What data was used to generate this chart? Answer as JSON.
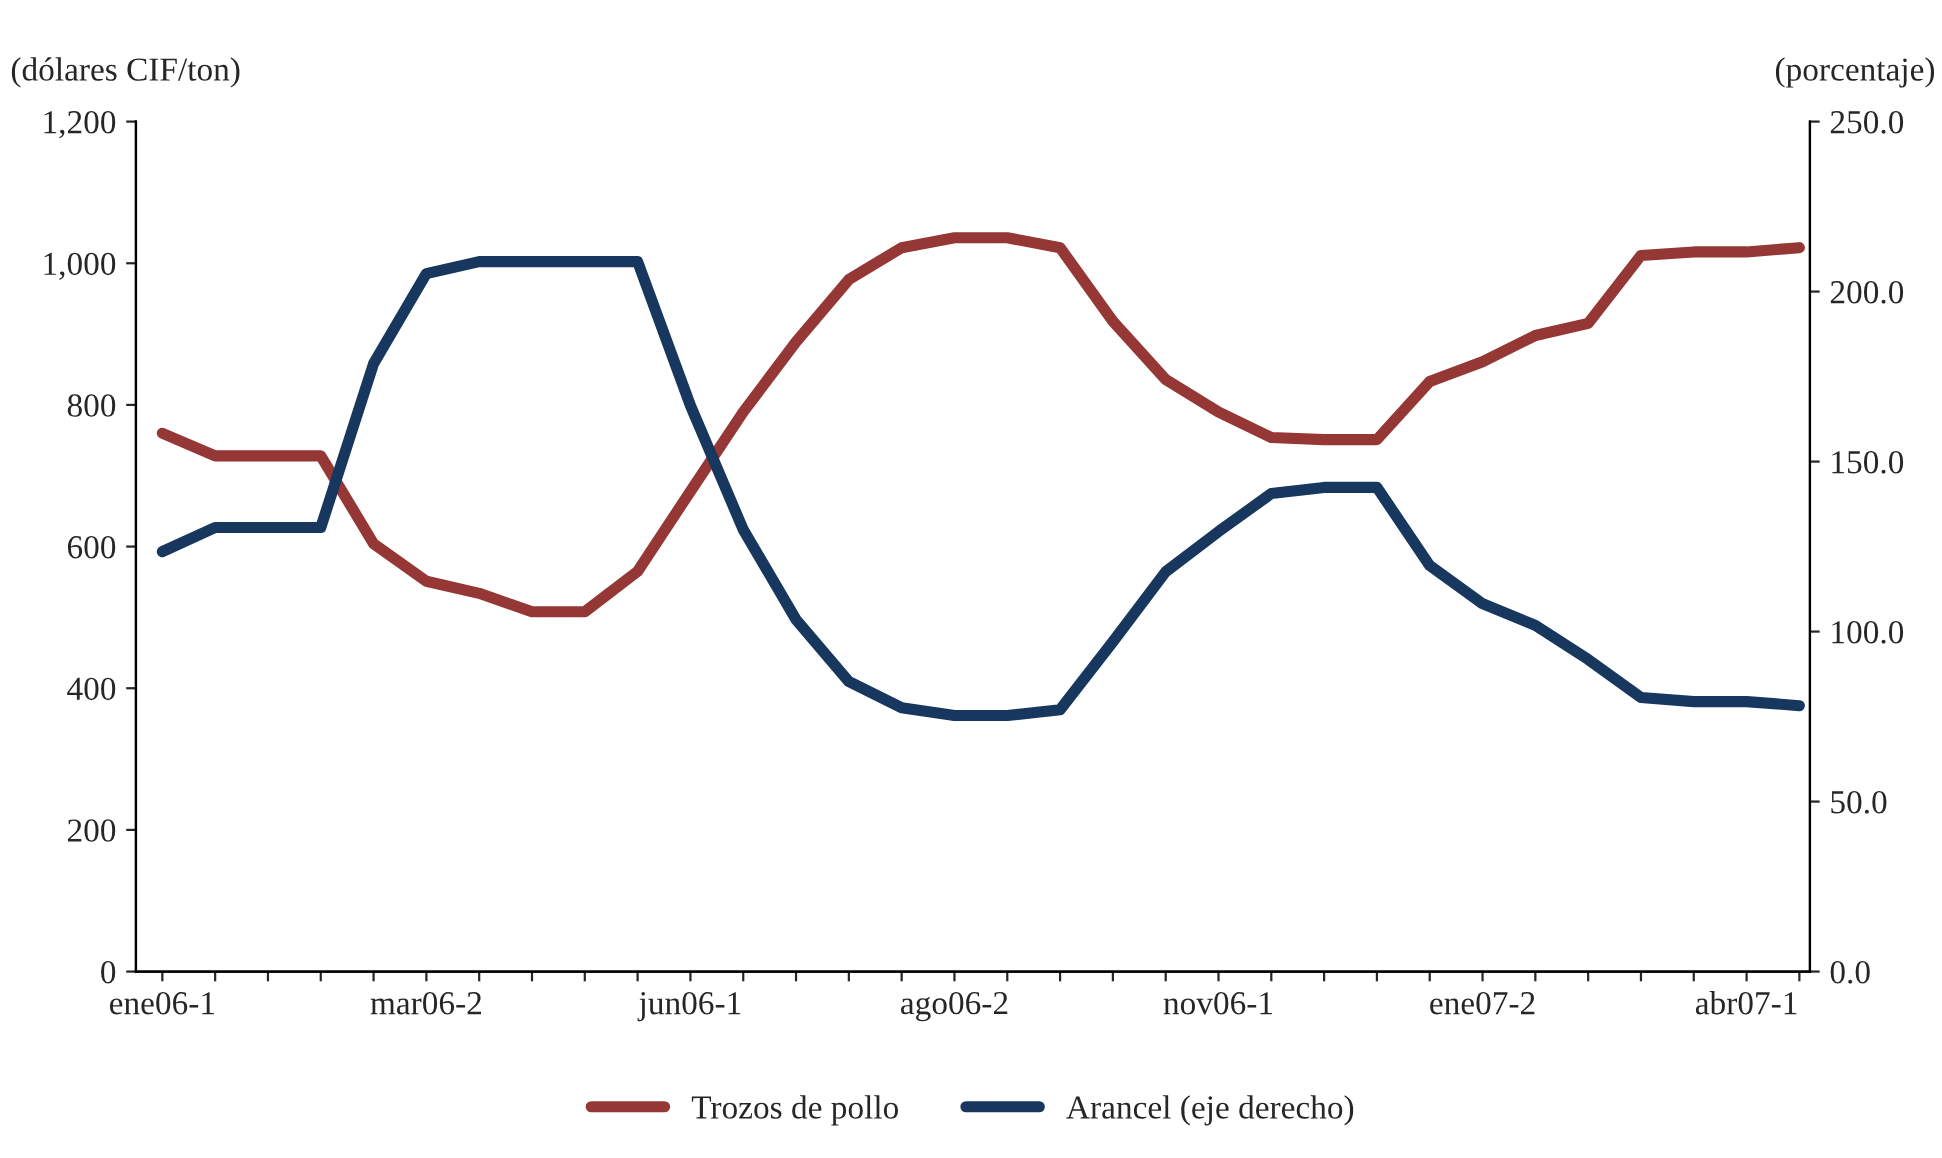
{
  "chart_data": {
    "type": "line",
    "categories": [
      "ene06-1",
      null,
      null,
      null,
      null,
      "mar06-2",
      null,
      null,
      null,
      null,
      "jun06-1",
      null,
      null,
      null,
      null,
      "ago06-2",
      null,
      null,
      null,
      null,
      "nov06-1",
      null,
      null,
      null,
      null,
      "ene07-2",
      null,
      null,
      null,
      null,
      "abr07-1",
      null
    ],
    "ylabel": "(dólares CIF/ton)",
    "y2label": "(porcentaje)",
    "ylim": [
      0,
      1200
    ],
    "yticks": [
      0,
      200,
      400,
      600,
      800,
      {
        "value": 1000,
        "label": "1,000"
      },
      {
        "value": 1200,
        "label": "1,200"
      }
    ],
    "y2lim": [
      0,
      250
    ],
    "y2ticks": [
      {
        "value": 0,
        "label": "0.0"
      },
      {
        "value": 50,
        "label": "50.0"
      },
      {
        "value": 100,
        "label": "100.0"
      },
      {
        "value": 150,
        "label": "150.0"
      },
      {
        "value": 200,
        "label": "200.0"
      },
      {
        "value": 250,
        "label": "250.0"
      }
    ],
    "series": [
      {
        "name": "Trozos de pollo",
        "color": "#953735",
        "values": [
          760,
          728,
          728,
          728,
          604,
          551,
          534,
          508,
          508,
          565,
          678,
          790,
          889,
          977,
          1022,
          1036,
          1036,
          1022,
          918,
          836,
          790,
          754,
          751,
          751,
          833,
          861,
          898,
          915,
          1011,
          1016,
          1016,
          1022
        ]
      },
      {
        "name": "Arancel (eje derecho)",
        "color": "#17375e",
        "axis": "y2",
        "values": [
          123.5,
          130.6,
          130.6,
          130.6,
          178.8,
          205.3,
          208.8,
          208.8,
          208.8,
          208.8,
          166.5,
          130,
          103.5,
          85.3,
          77.6,
          75.3,
          75.3,
          77,
          97,
          117.6,
          129.4,
          140.6,
          142.4,
          142.4,
          119.4,
          108.2,
          101.8,
          91.8,
          80.6,
          79.4,
          79.4,
          78.2
        ]
      }
    ],
    "grid": false,
    "legend": "bottom",
    "line_style": "solid",
    "marker": "none"
  }
}
